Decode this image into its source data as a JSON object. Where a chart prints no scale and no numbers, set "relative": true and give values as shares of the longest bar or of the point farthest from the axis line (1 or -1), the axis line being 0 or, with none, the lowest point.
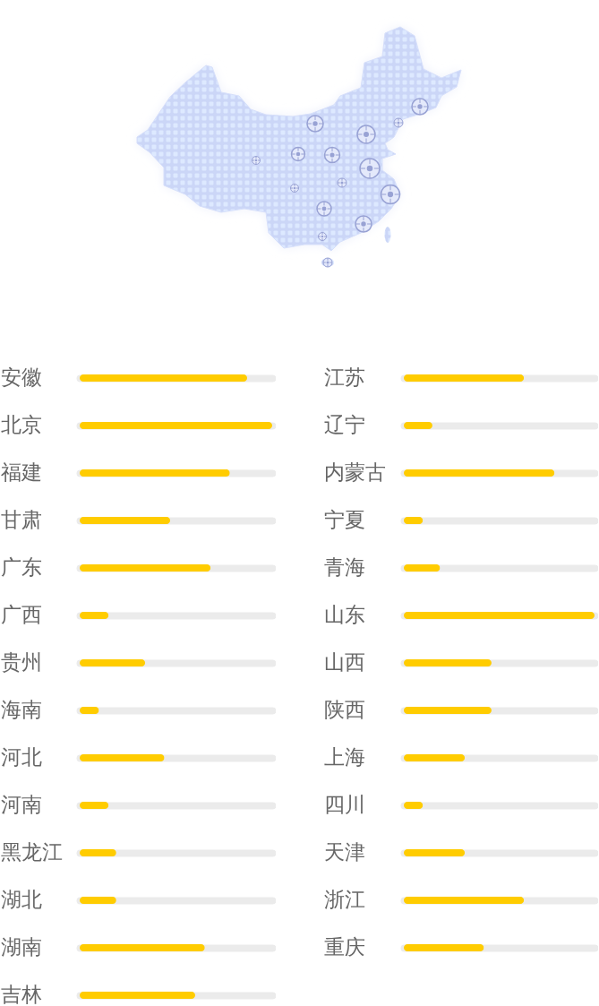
{
  "chart_data": [
    {
      "type": "bar",
      "orientation": "horizontal",
      "relative": true,
      "categories": [
        "安徽",
        "北京",
        "福建",
        "甘肃",
        "广东",
        "广西",
        "贵州",
        "海南",
        "河北",
        "河南",
        "黑龙江",
        "湖北",
        "湖南",
        "吉林"
      ],
      "values": [
        0.87,
        1,
        0.78,
        0.47,
        0.68,
        0.15,
        0.34,
        0.1,
        0.44,
        0.15,
        0.19,
        0.19,
        0.65,
        0.6
      ],
      "color": "#ffcc00",
      "grid": "y"
    },
    {
      "type": "bar",
      "orientation": "horizontal",
      "relative": true,
      "categories": [
        "江苏",
        "辽宁",
        "内蒙古",
        "宁夏",
        "青海",
        "山东",
        "山西",
        "陕西",
        "上海",
        "四川",
        "天津",
        "浙江",
        "重庆"
      ],
      "values": [
        0.63,
        0.15,
        0.79,
        0.1,
        0.19,
        1,
        0.46,
        0.46,
        0.32,
        0.1,
        0.32,
        0.63,
        0.42
      ],
      "color": "#ffcc00",
      "grid": "y"
    }
  ]
}
